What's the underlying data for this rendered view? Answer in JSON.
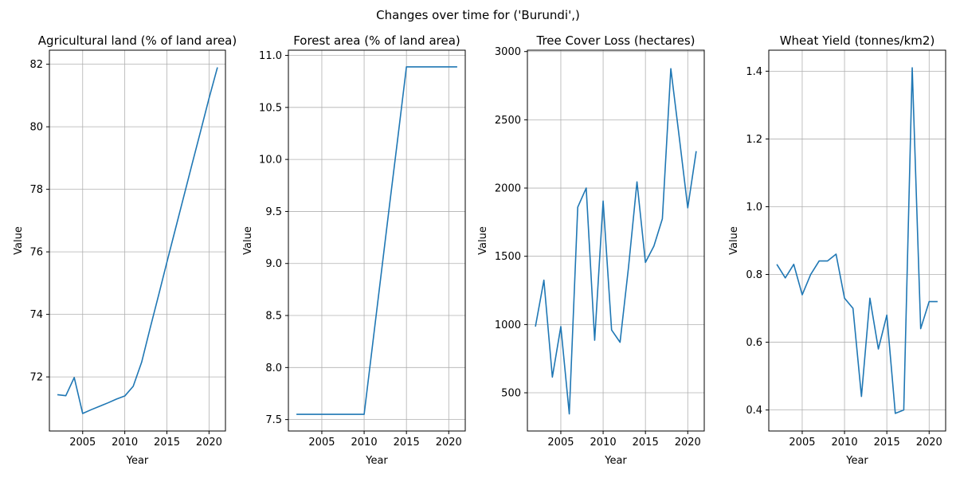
{
  "figure": {
    "suptitle": "Changes over time for ('Burundi',)"
  },
  "style": {
    "line_color": "#1f77b4",
    "grid_color": "#b0b0b0",
    "axis_color": "#000000"
  },
  "chart_data": [
    {
      "type": "line",
      "title": "Agricultural land (% of land area)",
      "xlabel": "Year",
      "ylabel": "Value",
      "grid": true,
      "xlim": [
        2001.05,
        2021.95
      ],
      "ylim": [
        70.27,
        82.45
      ],
      "xticks": [
        2005,
        2010,
        2015,
        2020
      ],
      "yticks": [
        72,
        74,
        76,
        78,
        80,
        82
      ],
      "x": [
        2002,
        2003,
        2004,
        2005,
        2006,
        2007,
        2008,
        2009,
        2010,
        2011,
        2012,
        2013,
        2014,
        2015,
        2016,
        2017,
        2018,
        2019,
        2020,
        2021
      ],
      "values": [
        71.43,
        71.4,
        71.98,
        70.83,
        70.95,
        71.06,
        71.17,
        71.29,
        71.39,
        71.7,
        72.47,
        73.55,
        74.6,
        75.67,
        76.72,
        77.77,
        78.82,
        79.86,
        80.91,
        81.9
      ]
    },
    {
      "type": "line",
      "title": "Forest area (% of land area)",
      "xlabel": "Year",
      "ylabel": "Value",
      "grid": true,
      "xlim": [
        2001.05,
        2021.95
      ],
      "ylim": [
        7.39,
        11.05
      ],
      "xticks": [
        2005,
        2010,
        2015,
        2020
      ],
      "yticks": [
        7.5,
        8.0,
        8.5,
        9.0,
        9.5,
        10.0,
        10.5,
        11.0
      ],
      "x": [
        2002,
        2003,
        2004,
        2005,
        2006,
        2007,
        2008,
        2009,
        2010,
        2011,
        2012,
        2013,
        2014,
        2015,
        2016,
        2017,
        2018,
        2019,
        2020,
        2021
      ],
      "values": [
        7.55,
        7.55,
        7.55,
        7.55,
        7.55,
        7.55,
        7.55,
        7.55,
        7.55,
        8.22,
        8.89,
        9.56,
        10.22,
        10.89,
        10.89,
        10.89,
        10.89,
        10.89,
        10.89,
        10.89
      ]
    },
    {
      "type": "line",
      "title": "Tree Cover Loss (hectares)",
      "xlabel": "Year",
      "ylabel": "Value",
      "grid": true,
      "xlim": [
        2001.05,
        2021.95
      ],
      "ylim": [
        220,
        3010
      ],
      "xticks": [
        2005,
        2010,
        2015,
        2020
      ],
      "yticks": [
        500,
        1000,
        1500,
        2000,
        2500,
        3000
      ],
      "x": [
        2002,
        2003,
        2004,
        2005,
        2006,
        2007,
        2008,
        2009,
        2010,
        2011,
        2012,
        2013,
        2014,
        2015,
        2016,
        2017,
        2018,
        2019,
        2020,
        2021
      ],
      "values": [
        985,
        1325,
        615,
        985,
        345,
        1860,
        2000,
        885,
        1905,
        960,
        870,
        1420,
        2045,
        1455,
        1575,
        1775,
        2875,
        2370,
        1855,
        2270
      ]
    },
    {
      "type": "line",
      "title": "Wheat Yield (tonnes/km2)",
      "xlabel": "Year",
      "ylabel": "Value",
      "grid": true,
      "xlim": [
        2001.05,
        2021.95
      ],
      "ylim": [
        0.338,
        1.462
      ],
      "xticks": [
        2005,
        2010,
        2015,
        2020
      ],
      "yticks": [
        0.4,
        0.6,
        0.8,
        1.0,
        1.2,
        1.4
      ],
      "x": [
        2002,
        2003,
        2004,
        2005,
        2006,
        2007,
        2008,
        2009,
        2010,
        2011,
        2012,
        2013,
        2014,
        2015,
        2016,
        2017,
        2018,
        2019,
        2020,
        2021
      ],
      "values": [
        0.83,
        0.79,
        0.83,
        0.74,
        0.8,
        0.84,
        0.84,
        0.86,
        0.73,
        0.7,
        0.44,
        0.73,
        0.58,
        0.68,
        0.39,
        0.4,
        1.41,
        0.64,
        0.72,
        0.72
      ]
    }
  ]
}
